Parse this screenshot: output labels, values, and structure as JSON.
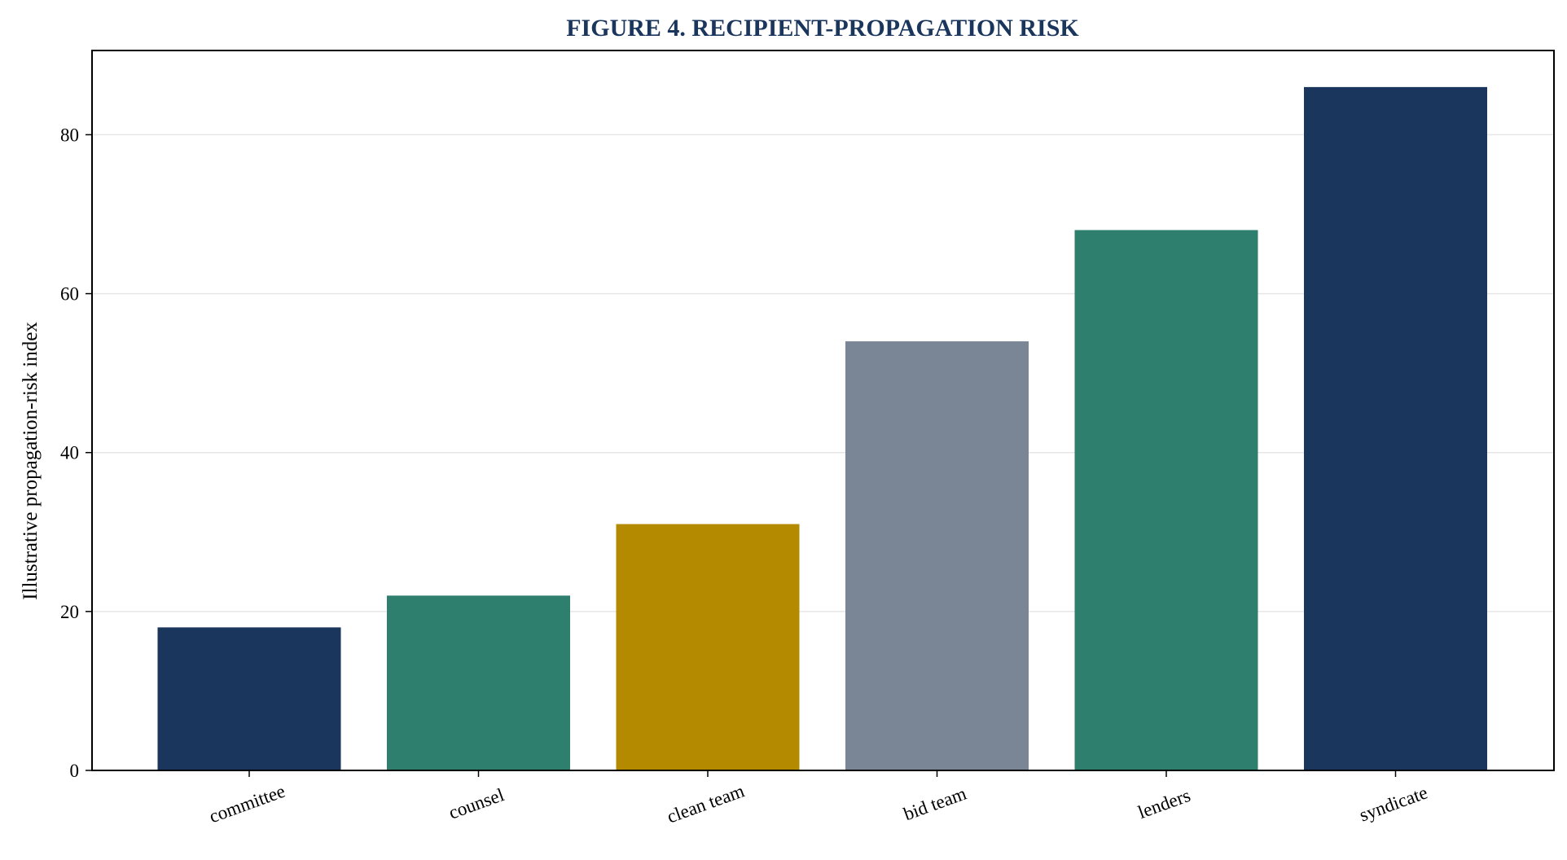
{
  "chart_data": {
    "type": "bar",
    "title": "FIGURE 4. RECIPIENT-PROPAGATION RISK",
    "xlabel": "",
    "ylabel": "Illustrative propagation-risk index",
    "categories": [
      "committee",
      "counsel",
      "clean team",
      "bid team",
      "lenders",
      "syndicate"
    ],
    "values": [
      18,
      22,
      31,
      54,
      68,
      86
    ],
    "colors": [
      "#1b365d",
      "#2e7f6e",
      "#b38a00",
      "#7a8696",
      "#2e7f6e",
      "#1b365d"
    ],
    "ylim": [
      0,
      90.6
    ],
    "yticks": [
      0,
      20,
      40,
      60,
      80
    ],
    "grid": "y"
  }
}
